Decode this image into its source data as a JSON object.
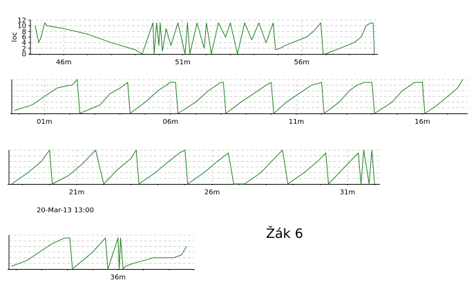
{
  "title": "Žák 6",
  "date_label": "20-Mar-13 13:00",
  "colors": {
    "series": "#1b7f1b",
    "grid": "#c8c8c8",
    "axis": "#000000"
  },
  "chart_data": [
    {
      "type": "line",
      "ylabel": "loc",
      "ylim": [
        0,
        12
      ],
      "yticks": [
        0,
        2,
        4,
        6,
        8,
        10,
        12
      ],
      "grid": true,
      "xlim": [
        44.6,
        59.2
      ],
      "xticks": [
        {
          "v": 46,
          "label": "46m"
        },
        {
          "v": 51,
          "label": "51m"
        },
        {
          "v": 56,
          "label": "56m"
        }
      ],
      "series": [
        {
          "x": [
            44.8,
            44.95,
            45.05,
            45.2,
            45.3,
            46.0,
            47.0,
            48.0,
            49.0,
            49.3,
            49.75,
            49.8,
            49.9,
            50.0,
            50.05,
            50.15,
            50.3,
            50.5,
            50.8,
            51.1,
            51.2,
            51.3,
            51.6,
            51.9,
            52.0,
            52.2,
            52.5,
            52.8,
            53.0,
            53.3,
            53.6,
            53.9,
            54.2,
            54.5,
            54.8,
            54.9,
            55.1,
            55.3,
            55.6,
            55.9,
            56.2,
            56.5,
            56.8,
            56.9,
            57.0,
            57.3,
            57.6,
            57.9,
            58.2,
            58.5,
            58.7,
            58.9,
            59.0,
            59.05
          ],
          "y": [
            10,
            4,
            6,
            11,
            10,
            9,
            7,
            4,
            1.5,
            0,
            11,
            0,
            11,
            3,
            11,
            1,
            9,
            3,
            11,
            0,
            11,
            0,
            11,
            2,
            11,
            0,
            11,
            6,
            11,
            0,
            11,
            5,
            11,
            4,
            11,
            1.5,
            2,
            3,
            4,
            5,
            6,
            8,
            11,
            0,
            0,
            1,
            2,
            3,
            4,
            6,
            10,
            11,
            11,
            0
          ]
        }
      ]
    },
    {
      "type": "line",
      "ylim": [
        0,
        12
      ],
      "grid": true,
      "xlim": [
        59.7,
        77.8
      ],
      "xticks": [
        {
          "v": 61,
          "label": "01m"
        },
        {
          "v": 66,
          "label": "06m"
        },
        {
          "v": 71,
          "label": "11m"
        },
        {
          "v": 76,
          "label": "16m"
        }
      ],
      "series": [
        {
          "x": [
            59.8,
            60.5,
            61.0,
            61.5,
            62.0,
            62.1,
            62.3,
            62.4,
            63.2,
            63.6,
            64.0,
            64.3,
            64.4,
            65.0,
            65.5,
            66.0,
            66.2,
            66.3,
            67.0,
            67.5,
            68.0,
            68.1,
            68.2,
            68.8,
            69.3,
            69.8,
            70.0,
            70.1,
            70.6,
            71.1,
            71.6,
            72.0,
            72.1,
            72.7,
            73.1,
            73.4,
            73.7,
            74.0,
            74.1,
            74.8,
            75.2,
            75.7,
            76.0,
            76.1,
            76.6,
            77.0,
            77.4,
            77.6
          ],
          "y": [
            1,
            3,
            6,
            9,
            10,
            10,
            12,
            0,
            3,
            7,
            9,
            11,
            0,
            4,
            8,
            11,
            11,
            0,
            4,
            8,
            11,
            11,
            0,
            4,
            7,
            10,
            11,
            0,
            4,
            7,
            10,
            11,
            0,
            4,
            8,
            10,
            11,
            11,
            0,
            4,
            8,
            11,
            11,
            0,
            3,
            6,
            9,
            12
          ]
        }
      ]
    },
    {
      "type": "line",
      "ylim": [
        0,
        12
      ],
      "grid": true,
      "xlim": [
        78.5,
        92.2
      ],
      "xticks": [
        {
          "v": 81,
          "label": "21m"
        },
        {
          "v": 86,
          "label": "26m"
        },
        {
          "v": 91,
          "label": "31m"
        }
      ],
      "series": [
        {
          "x": [
            78.6,
            79.2,
            79.7,
            80.0,
            80.1,
            80.7,
            81.2,
            81.5,
            81.7,
            82.0,
            82.5,
            83.0,
            83.2,
            83.3,
            83.9,
            84.4,
            84.8,
            85.0,
            85.1,
            85.7,
            86.2,
            86.6,
            86.8,
            87.2,
            87.8,
            88.2,
            88.6,
            88.8,
            89.4,
            89.9,
            90.2,
            90.3,
            91.4,
            91.5,
            91.6,
            91.8,
            91.9,
            92.0
          ],
          "y": [
            0,
            4,
            8,
            12,
            0,
            3,
            7,
            10,
            12,
            0,
            5,
            9,
            12,
            0,
            4,
            8,
            11,
            12,
            0,
            4,
            8,
            11,
            0,
            0,
            4,
            8,
            12,
            0,
            4,
            8,
            11,
            0,
            11,
            0,
            12,
            0,
            12,
            0
          ]
        }
      ]
    },
    {
      "type": "line",
      "ylim": [
        0,
        12
      ],
      "grid": true,
      "xlim": [
        33.7,
        41.0
      ],
      "xticks": [
        {
          "v": 38,
          "label": "36m"
        }
      ],
      "series": [
        {
          "x": [
            33.8,
            34.4,
            34.9,
            35.4,
            35.9,
            36.1,
            36.2,
            36.6,
            37.0,
            37.3,
            37.5,
            37.6,
            38.0,
            38.05,
            38.1,
            38.2,
            38.3,
            38.6,
            39.0,
            39.4,
            39.8,
            40.2,
            40.5,
            40.7
          ],
          "y": [
            1,
            3,
            6,
            9,
            11,
            11,
            0,
            3,
            6,
            9,
            11,
            0,
            11,
            0,
            11,
            0,
            1,
            2,
            3,
            4,
            4,
            4,
            5,
            8
          ]
        }
      ]
    }
  ]
}
